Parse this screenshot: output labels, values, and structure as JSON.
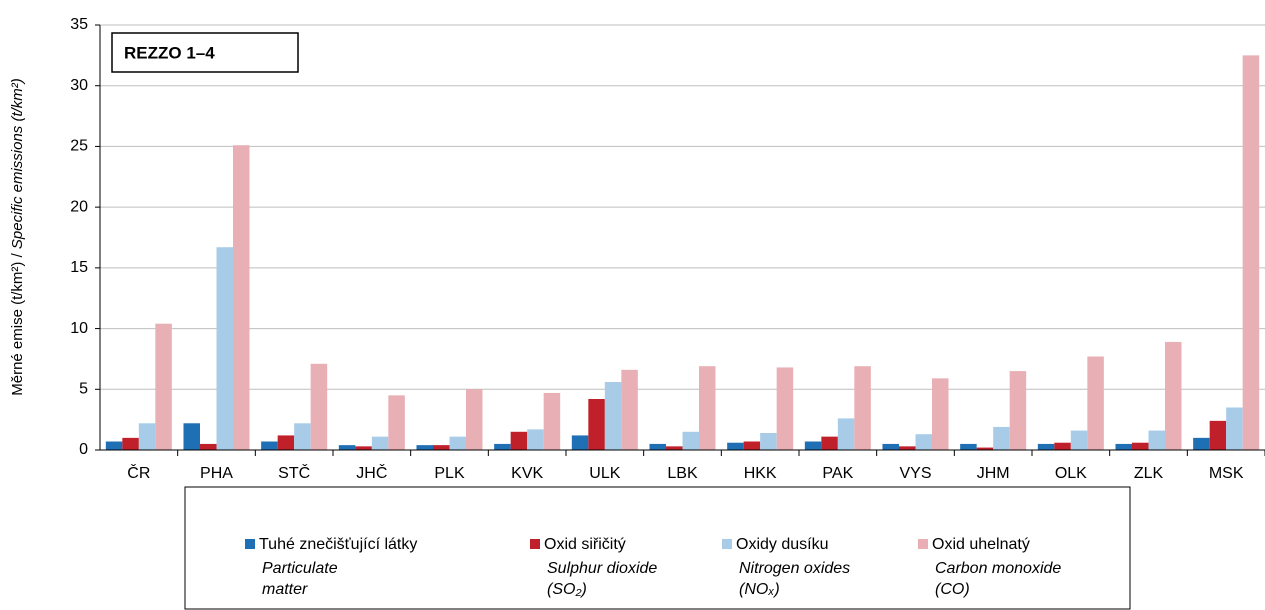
{
  "chart_data": {
    "type": "bar",
    "annotation": "REZZO 1–4",
    "ylabel": {
      "cz": "Měrné emise (t/km²) / ",
      "en": "Specific emissions (t/km²)"
    },
    "categories": [
      "ČR",
      "PHA",
      "STČ",
      "JHČ",
      "PLK",
      "KVK",
      "ULK",
      "LBK",
      "HKK",
      "PAK",
      "VYS",
      "JHM",
      "OLK",
      "ZLK",
      "MSK"
    ],
    "series": [
      {
        "name": "Tuhé znečišťující látky",
        "name_en": [
          "Particulate",
          "matter"
        ],
        "color": "#1f6fb5",
        "values": [
          0.7,
          2.2,
          0.7,
          0.4,
          0.4,
          0.5,
          1.2,
          0.5,
          0.6,
          0.7,
          0.5,
          0.5,
          0.5,
          0.5,
          1.0
        ]
      },
      {
        "name": "Oxid siřičitý",
        "name_en": [
          "Sulphur dioxide",
          "(SO₂)"
        ],
        "color": "#c0202a",
        "values": [
          1.0,
          0.5,
          1.2,
          0.3,
          0.4,
          1.5,
          4.2,
          0.3,
          0.7,
          1.1,
          0.3,
          0.2,
          0.6,
          0.6,
          2.4
        ]
      },
      {
        "name": "Oxidy dusíku",
        "name_en": [
          "Nitrogen oxides",
          "(NOₓ)"
        ],
        "color": "#a8cce8",
        "values": [
          2.2,
          16.7,
          2.2,
          1.1,
          1.1,
          1.7,
          5.6,
          1.5,
          1.4,
          2.6,
          1.3,
          1.9,
          1.6,
          1.6,
          3.5
        ]
      },
      {
        "name": "Oxid uhelnatý",
        "name_en": [
          "Carbon monoxide",
          "(CO)"
        ],
        "color": "#e8b0b4",
        "values": [
          10.4,
          25.1,
          7.1,
          4.5,
          5.0,
          4.7,
          6.6,
          6.9,
          6.8,
          6.9,
          5.9,
          6.5,
          7.7,
          8.9,
          32.5
        ]
      }
    ],
    "ylim": [
      0,
      35
    ],
    "yticks": [
      0,
      5,
      10,
      15,
      20,
      25,
      30,
      35
    ],
    "grid": true
  }
}
